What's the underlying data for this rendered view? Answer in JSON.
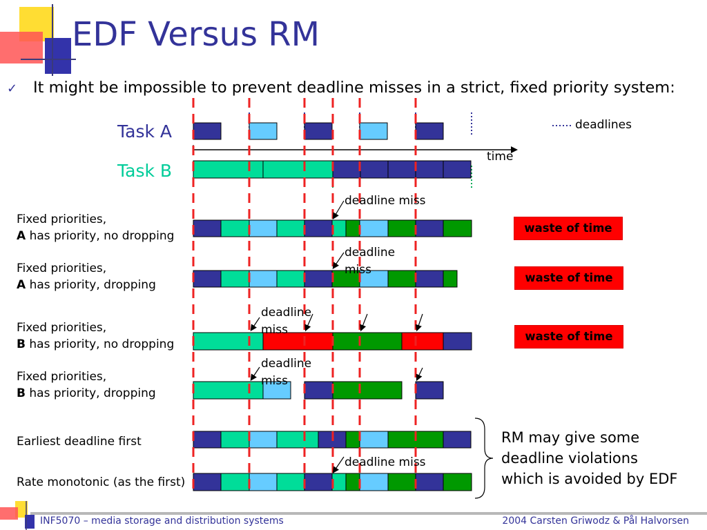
{
  "slide": {
    "title": "EDF Versus RM",
    "bullet": "It might be impossible to prevent deadline misses in a strict, fixed priority system:"
  },
  "tasks": {
    "task_a_label": "Task A",
    "task_b_label": "Task B",
    "time_label": "time",
    "deadlines_label": "deadlines"
  },
  "rows": [
    {
      "line1": "Fixed priorities,",
      "bold": "A",
      "line2_rest": " has priority, no dropping"
    },
    {
      "line1": "Fixed priorities,",
      "bold": "A",
      "line2_rest": " has priority, dropping"
    },
    {
      "line1": "Fixed priorities,",
      "bold": "B",
      "line2_rest": " has priority, no dropping"
    },
    {
      "line1": "Fixed priorities,",
      "bold": "B",
      "line2_rest": " has priority, dropping"
    },
    {
      "line1": "Earliest deadline first"
    },
    {
      "line1": "Rate monotonic (as the first)"
    }
  ],
  "annotations": {
    "deadline_miss": "deadline miss",
    "deadline_miss_2a": "deadline",
    "deadline_miss_2b": "miss"
  },
  "waste_label": "waste of time",
  "summary_lines": [
    "RM may give some",
    "deadline violations",
    "which is avoided by EDF"
  ],
  "footer": {
    "left": "INF5070 – media storage and distribution systems",
    "right": "2004  Carsten Griwodz & Pål Halvorsen"
  },
  "colors": {
    "dark_blue": "#333399",
    "light_blue": "#66ccff",
    "turquoise": "#00dd99",
    "green": "#009900",
    "red": "#ff0000",
    "dashed_red": "#ee2222"
  },
  "timeline": {
    "task_a": [
      "dark_blue",
      "gap",
      "light_blue",
      "gap",
      "dark_blue",
      "gap",
      "light_blue",
      "gap",
      "dark_blue"
    ],
    "task_b": [
      "turquoise_run",
      "dark_blue",
      "dark_blue",
      "dark_blue",
      "dark_blue",
      "dark_blue"
    ]
  }
}
